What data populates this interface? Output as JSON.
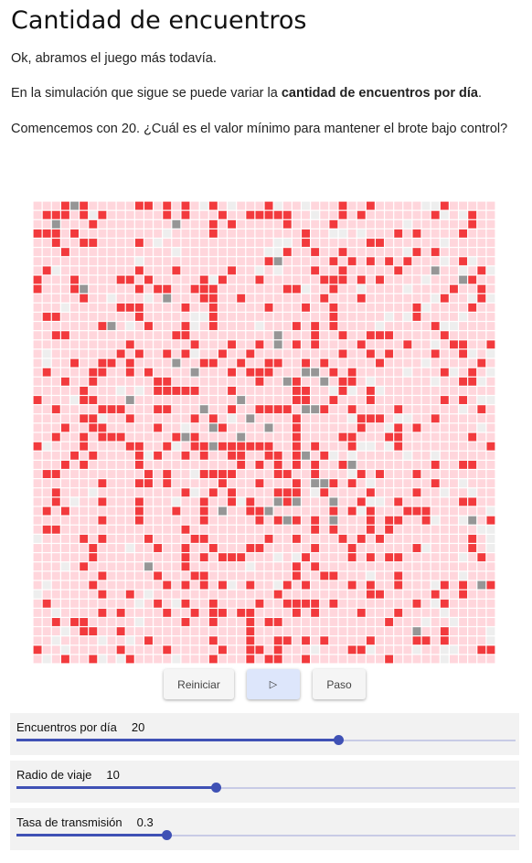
{
  "title": "Cantidad de encuentros",
  "paragraphs": {
    "p1": "Ok, abramos el juego más todavía.",
    "p2_before": "En la simulación que sigue se puede variar la ",
    "p2_bold": "cantidad de encuentros por día",
    "p2_after": ".",
    "p3": "Comencemos con 20. ¿Cuál es el valor mínimo para mantener el brote bajo control?"
  },
  "simulation": {
    "grid_size": 50,
    "state_colors": {
      "susceptible": "#ffd6dc",
      "infected": "#f23a3d",
      "recovered": "#969696",
      "empty": "#eeeeee"
    }
  },
  "buttons": {
    "reset": "Reiniciar",
    "play": "▷",
    "step": "Paso"
  },
  "sliders": [
    {
      "label": "Encuentros por día",
      "value": "20",
      "fraction": 0.645
    },
    {
      "label": "Radio de viaje",
      "value": "10",
      "fraction": 0.4
    },
    {
      "label": "Tasa de transmisión",
      "value": "0.3",
      "fraction": 0.3
    }
  ],
  "colors": {
    "accent": "#3f51b5",
    "track": "#c8cbe6",
    "play_button": "#dde6fb"
  }
}
